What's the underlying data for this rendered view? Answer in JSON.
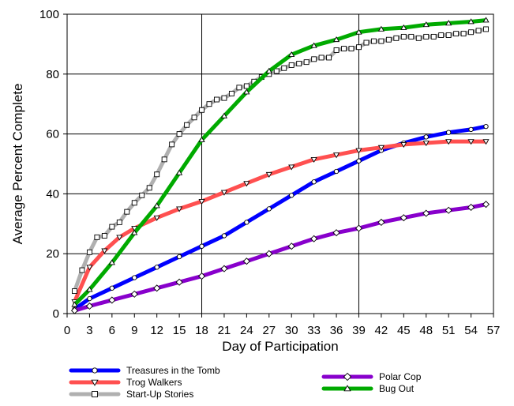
{
  "chart_data": {
    "type": "line",
    "title": "",
    "xlabel": "Day of Participation",
    "ylabel": "Average Percent Complete",
    "xlim": [
      0,
      57
    ],
    "ylim": [
      0,
      100
    ],
    "xticks": [
      0,
      3,
      6,
      9,
      12,
      15,
      18,
      21,
      24,
      27,
      30,
      33,
      36,
      39,
      42,
      45,
      48,
      51,
      54,
      57
    ],
    "yticks": [
      0,
      20,
      40,
      60,
      80,
      100
    ],
    "xtick_labels": [
      "0",
      "3",
      "6",
      "9",
      "12",
      "15",
      "18",
      "21",
      "24",
      "27",
      "30",
      "33",
      "36",
      "39",
      "42",
      "45",
      "48",
      "51",
      "54",
      "57"
    ],
    "ytick_labels": [
      "0",
      "20",
      "40",
      "60",
      "80",
      "100"
    ],
    "vertical_gridlines_at": [
      18,
      39
    ],
    "horizontal_gridlines": true,
    "legend_position": "bottom",
    "series": [
      {
        "name": "Treasures in the Tomb",
        "color": "#0000ff",
        "marker": "circle",
        "points": [
          [
            1,
            1.5
          ],
          [
            3,
            5
          ],
          [
            6,
            8.5
          ],
          [
            9,
            12
          ],
          [
            12,
            15.5
          ],
          [
            15,
            19
          ],
          [
            18,
            22.5
          ],
          [
            21,
            26
          ],
          [
            24,
            30.5
          ],
          [
            27,
            35
          ],
          [
            30,
            39.5
          ],
          [
            33,
            44
          ],
          [
            36,
            47.5
          ],
          [
            39,
            51
          ],
          [
            42,
            54.5
          ],
          [
            45,
            57
          ],
          [
            48,
            59
          ],
          [
            51,
            60.5
          ],
          [
            54,
            61.5
          ],
          [
            56,
            62.5
          ]
        ]
      },
      {
        "name": "Trog Walkers",
        "color": "#ff5050",
        "marker": "triangle-down",
        "points": [
          [
            1,
            4
          ],
          [
            3,
            15.5
          ],
          [
            5,
            21
          ],
          [
            7,
            25.5
          ],
          [
            9,
            28.5
          ],
          [
            12,
            32
          ],
          [
            15,
            35
          ],
          [
            18,
            37.5
          ],
          [
            21,
            40.5
          ],
          [
            24,
            43.5
          ],
          [
            27,
            46.5
          ],
          [
            30,
            49
          ],
          [
            33,
            51.5
          ],
          [
            36,
            53
          ],
          [
            39,
            54.5
          ],
          [
            42,
            55.5
          ],
          [
            45,
            56.5
          ],
          [
            48,
            57
          ],
          [
            51,
            57.5
          ],
          [
            54,
            57.5
          ],
          [
            56,
            57.5
          ]
        ]
      },
      {
        "name": "Start-Up Stories",
        "color": "#b0b0b0",
        "marker": "square",
        "points": [
          [
            1,
            7.5
          ],
          [
            2,
            14.5
          ],
          [
            3,
            20.5
          ],
          [
            4,
            25.5
          ],
          [
            5,
            26
          ],
          [
            6,
            29
          ],
          [
            7,
            30.5
          ],
          [
            8,
            34
          ],
          [
            9,
            37
          ],
          [
            10,
            39.5
          ],
          [
            11,
            42
          ],
          [
            12,
            46.5
          ],
          [
            13,
            51.5
          ],
          [
            14,
            56.5
          ],
          [
            15,
            60
          ],
          [
            16,
            63
          ],
          [
            17,
            65.5
          ],
          [
            18,
            68
          ],
          [
            19,
            70
          ],
          [
            20,
            71.5
          ],
          [
            21,
            72
          ],
          [
            22,
            73.5
          ],
          [
            23,
            75.5
          ],
          [
            24,
            76
          ],
          [
            25,
            77.5
          ],
          [
            26,
            79
          ],
          [
            27,
            80
          ],
          [
            28,
            81
          ],
          [
            29,
            82
          ],
          [
            30,
            83
          ],
          [
            31,
            83.5
          ],
          [
            32,
            84
          ],
          [
            33,
            85
          ],
          [
            34,
            85.5
          ],
          [
            35,
            85.5
          ],
          [
            36,
            88
          ],
          [
            37,
            88.5
          ],
          [
            38,
            88.5
          ],
          [
            39,
            89
          ],
          [
            40,
            90.5
          ],
          [
            41,
            91
          ],
          [
            42,
            91
          ],
          [
            43,
            91.5
          ],
          [
            44,
            92
          ],
          [
            45,
            92.5
          ],
          [
            46,
            92.5
          ],
          [
            47,
            92
          ],
          [
            48,
            92.5
          ],
          [
            49,
            92.5
          ],
          [
            50,
            93
          ],
          [
            51,
            93
          ],
          [
            52,
            93.5
          ],
          [
            53,
            93.5
          ],
          [
            54,
            94
          ],
          [
            55,
            94.5
          ],
          [
            56,
            95
          ]
        ]
      },
      {
        "name": "Polar Cop",
        "color": "#8800cc",
        "marker": "diamond",
        "points": [
          [
            1,
            1
          ],
          [
            3,
            2.5
          ],
          [
            6,
            4.5
          ],
          [
            9,
            6.5
          ],
          [
            12,
            8.5
          ],
          [
            15,
            10.5
          ],
          [
            18,
            12.5
          ],
          [
            21,
            15
          ],
          [
            24,
            17.5
          ],
          [
            27,
            20
          ],
          [
            30,
            22.5
          ],
          [
            33,
            25
          ],
          [
            36,
            27
          ],
          [
            39,
            28.5
          ],
          [
            42,
            30.5
          ],
          [
            45,
            32
          ],
          [
            48,
            33.5
          ],
          [
            51,
            34.5
          ],
          [
            54,
            35.5
          ],
          [
            56,
            36.5
          ]
        ]
      },
      {
        "name": "Bug Out",
        "color": "#00aa00",
        "marker": "triangle-up",
        "points": [
          [
            1,
            3
          ],
          [
            3,
            8
          ],
          [
            6,
            17
          ],
          [
            9,
            27
          ],
          [
            12,
            36
          ],
          [
            15,
            47
          ],
          [
            18,
            58
          ],
          [
            21,
            66
          ],
          [
            24,
            74
          ],
          [
            27,
            81
          ],
          [
            30,
            86.5
          ],
          [
            33,
            89.5
          ],
          [
            36,
            91.5
          ],
          [
            39,
            94
          ],
          [
            42,
            95
          ],
          [
            45,
            95.5
          ],
          [
            48,
            96.5
          ],
          [
            51,
            97
          ],
          [
            54,
            97.5
          ],
          [
            56,
            98
          ]
        ]
      }
    ]
  }
}
